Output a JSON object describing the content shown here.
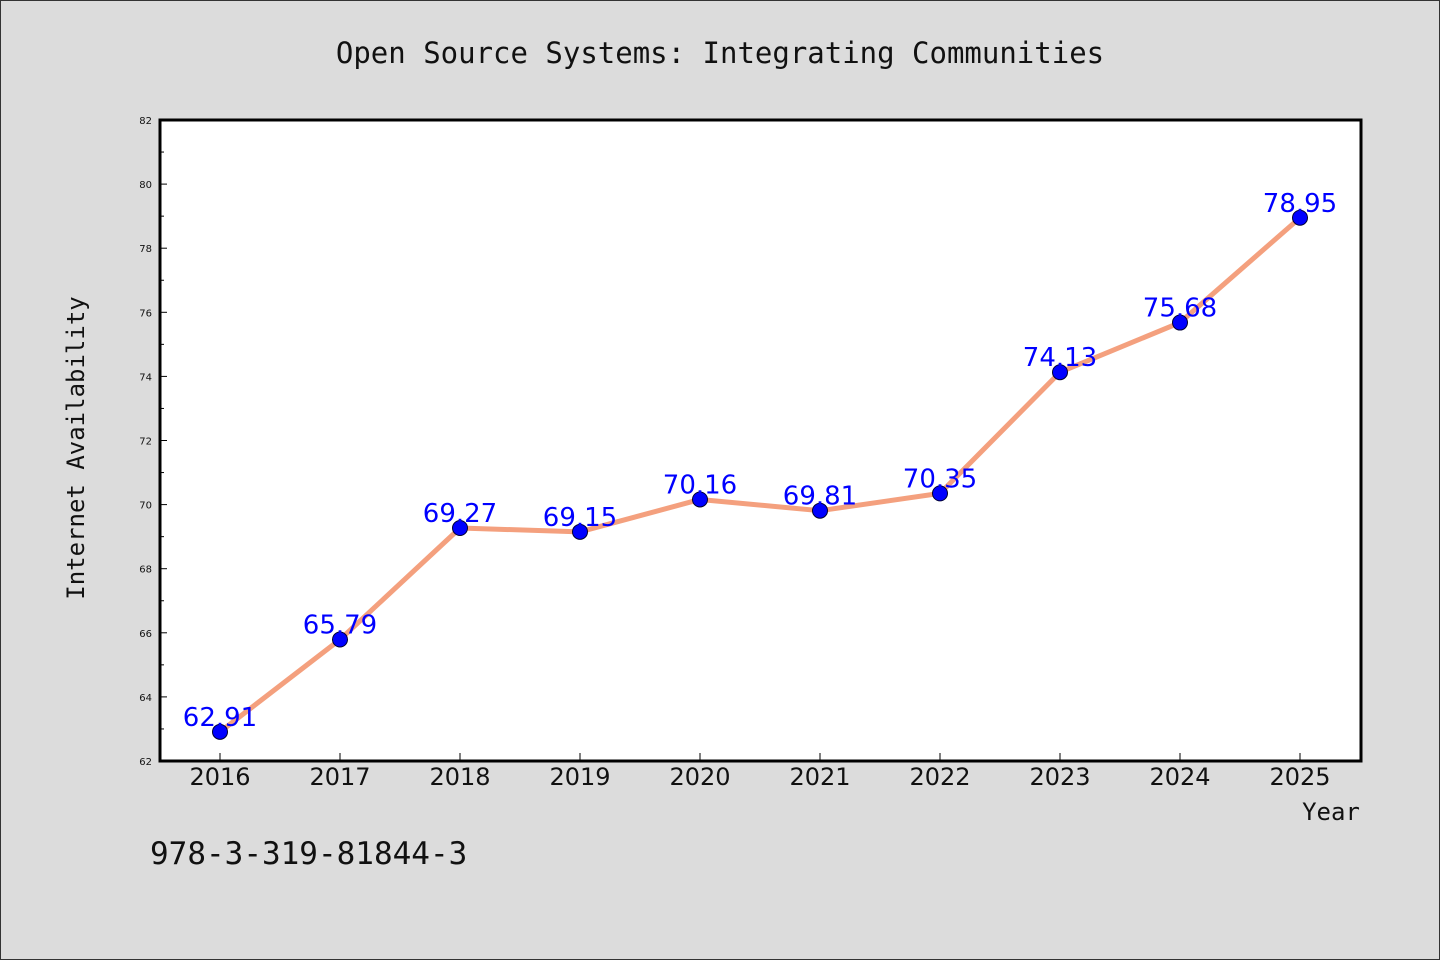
{
  "chart_data": {
    "type": "line",
    "title": "Open Source Systems: Integrating Communities",
    "xlabel": "Year",
    "ylabel": "Internet Availability",
    "categories": [
      "2016",
      "2017",
      "2018",
      "2019",
      "2020",
      "2021",
      "2022",
      "2023",
      "2024",
      "2025"
    ],
    "series": [
      {
        "values": [
          62.91,
          65.79,
          69.27,
          69.15,
          70.16,
          69.81,
          70.35,
          74.13,
          75.68,
          78.95
        ],
        "labels": [
          "62.91",
          "65.79",
          "69.27",
          "69.15",
          "70.16",
          "69.81",
          "70.35",
          "74.13",
          "75.68",
          "78.95"
        ]
      }
    ],
    "ylim": [
      62,
      82
    ],
    "yticks": [
      "62",
      "64",
      "66",
      "68",
      "70",
      "72",
      "74",
      "76",
      "78",
      "80",
      "82"
    ],
    "grid": false,
    "legend": "none",
    "colors": {
      "line": "#f4a07e",
      "marker": "#0000ff",
      "marker_edge": "#000033",
      "data_label": "#0000ff",
      "plot_bg": "#ffffff",
      "page_bg": "#dcdcdc"
    }
  },
  "footer": {
    "isbn": "978-3-319-81844-3"
  }
}
